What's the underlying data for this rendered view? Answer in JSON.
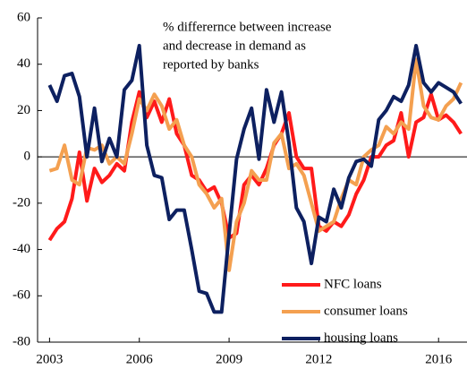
{
  "chart_data": {
    "type": "line",
    "annotation": [
      "%  differernce between increase",
      "and decrease in demand as",
      "reported by banks"
    ],
    "x": [
      2003,
      2003.25,
      2003.5,
      2003.75,
      2004,
      2004.25,
      2004.5,
      2004.75,
      2005,
      2005.25,
      2005.5,
      2005.75,
      2006,
      2006.25,
      2006.5,
      2006.75,
      2007,
      2007.25,
      2007.5,
      2007.75,
      2008,
      2008.25,
      2008.5,
      2008.75,
      2009,
      2009.25,
      2009.5,
      2009.75,
      2010,
      2010.25,
      2010.5,
      2010.75,
      2011,
      2011.25,
      2011.5,
      2011.75,
      2012,
      2012.25,
      2012.5,
      2012.75,
      2013,
      2013.25,
      2013.5,
      2013.75,
      2014,
      2014.25,
      2014.5,
      2014.75,
      2015,
      2015.25,
      2015.5,
      2015.75,
      2016,
      2016.25,
      2016.5,
      2016.75
    ],
    "series": [
      {
        "name": "NFC loans",
        "color": "#ff1a1a",
        "values": [
          -36,
          -31,
          -28,
          -18,
          2,
          -19,
          -5,
          -11,
          -8,
          -3,
          -6,
          15,
          28,
          17,
          24,
          15,
          25,
          10,
          5,
          -8,
          -10,
          -15,
          -13,
          -20,
          -35,
          -33,
          -12,
          -8,
          -12,
          -5,
          5,
          10,
          19,
          0,
          -5,
          -5,
          -30,
          -32,
          -28,
          -30,
          -25,
          -16,
          -10,
          0,
          0,
          5,
          7,
          19,
          0,
          15,
          17,
          27,
          16,
          18,
          15,
          10
        ]
      },
      {
        "name": "consumer loans",
        "color": "#f4a050",
        "values": [
          -6,
          -5,
          5,
          -10,
          -12,
          4,
          3,
          5,
          -3,
          0,
          -3,
          10,
          25,
          20,
          27,
          22,
          12,
          16,
          5,
          0,
          -12,
          -16,
          -22,
          -18,
          -49,
          -28,
          -20,
          -6,
          -10,
          -10,
          6,
          10,
          -5,
          -3,
          -8,
          -20,
          -32,
          -30,
          -28,
          -18,
          -10,
          -12,
          0,
          3,
          5,
          13,
          10,
          15,
          12,
          42,
          22,
          17,
          16,
          22,
          25,
          32
        ]
      },
      {
        "name": "housing loans",
        "color": "#0d2060",
        "values": [
          31,
          24,
          35,
          36,
          26,
          0,
          21,
          -2,
          8,
          0,
          29,
          33,
          48,
          5,
          -8,
          -9,
          -27,
          -23,
          -23,
          -40,
          -58,
          -59,
          -67,
          -67,
          -33,
          -1,
          12,
          21,
          -1,
          29,
          15,
          28,
          6,
          -22,
          -28,
          -46,
          -26,
          -28,
          -14,
          -22,
          -9,
          -2,
          -1,
          -4,
          16,
          20,
          26,
          24,
          31,
          48,
          32,
          28,
          32,
          30,
          28,
          23
        ]
      }
    ],
    "xlim": [
      2002.6,
      2016.95
    ],
    "xticks": [
      2003,
      2006,
      2009,
      2012,
      2016
    ],
    "ylim": [
      -80,
      60
    ],
    "yticks": [
      -80,
      -60,
      -40,
      -20,
      0,
      20,
      40,
      60
    ]
  }
}
